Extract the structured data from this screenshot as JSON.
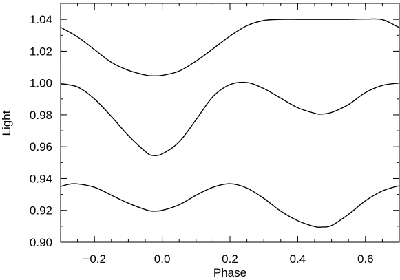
{
  "chart_data": {
    "type": "line",
    "title": "",
    "xlabel": "Phase",
    "ylabel": "Light",
    "xlim": [
      -0.3,
      0.7
    ],
    "ylim": [
      0.9,
      1.05
    ],
    "x_ticks": [
      -0.2,
      0.0,
      0.2,
      0.4,
      0.6
    ],
    "x_tick_labels": [
      "−0.2",
      "0.0",
      "0.2",
      "0.4",
      "0.6"
    ],
    "y_ticks": [
      0.9,
      0.92,
      0.94,
      0.96,
      0.98,
      1.0,
      1.02,
      1.04
    ],
    "y_tick_labels": [
      "0.90",
      "0.92",
      "0.94",
      "0.96",
      "0.98",
      "1.00",
      "1.02",
      "1.04"
    ],
    "grid": false,
    "legend": "none",
    "series": [
      {
        "color": "#000000",
        "x": [
          -0.3,
          -0.25,
          -0.2,
          -0.15,
          -0.1,
          -0.05,
          -0.03,
          0.0,
          0.05,
          0.1,
          0.15,
          0.2,
          0.25,
          0.3,
          0.35,
          0.4,
          0.45,
          0.5,
          0.55,
          0.6,
          0.65,
          0.7
        ],
        "y": [
          1.035,
          1.029,
          1.021,
          1.013,
          1.008,
          1.005,
          1.0045,
          1.0048,
          1.0075,
          1.0138,
          1.0215,
          1.0295,
          1.036,
          1.0393,
          1.04,
          1.04,
          1.04,
          1.04,
          1.04,
          1.0402,
          1.0398,
          1.0348
        ]
      },
      {
        "color": "#000000",
        "x": [
          -0.3,
          -0.25,
          -0.2,
          -0.15,
          -0.1,
          -0.05,
          -0.03,
          0.0,
          0.05,
          0.1,
          0.15,
          0.2,
          0.25,
          0.3,
          0.35,
          0.4,
          0.45,
          0.47,
          0.5,
          0.55,
          0.6,
          0.65,
          0.7
        ],
        "y": [
          0.9995,
          0.9975,
          0.99,
          0.979,
          0.967,
          0.957,
          0.9545,
          0.9555,
          0.963,
          0.977,
          0.9915,
          0.999,
          1.0003,
          0.9965,
          0.9905,
          0.9845,
          0.981,
          0.9805,
          0.9815,
          0.9865,
          0.994,
          0.9985,
          1.0
        ]
      },
      {
        "color": "#000000",
        "x": [
          -0.3,
          -0.26,
          -0.2,
          -0.15,
          -0.1,
          -0.05,
          -0.03,
          0.0,
          0.05,
          0.1,
          0.15,
          0.2,
          0.25,
          0.3,
          0.35,
          0.4,
          0.45,
          0.47,
          0.5,
          0.55,
          0.6,
          0.65,
          0.7
        ],
        "y": [
          0.935,
          0.9367,
          0.9345,
          0.9295,
          0.9245,
          0.9205,
          0.9195,
          0.92,
          0.9235,
          0.9295,
          0.9345,
          0.9367,
          0.934,
          0.9275,
          0.9195,
          0.9135,
          0.9098,
          0.9095,
          0.9105,
          0.9175,
          0.926,
          0.9322,
          0.9355
        ]
      }
    ]
  }
}
